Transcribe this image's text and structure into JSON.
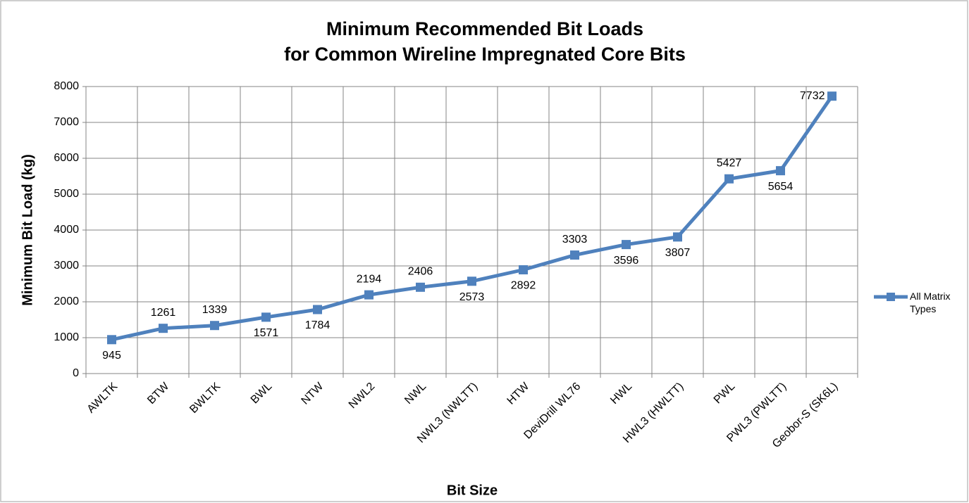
{
  "chart_data": {
    "type": "line",
    "title": [
      "Minimum Recommended Bit Loads",
      "for Common Wireline Impregnated Core Bits"
    ],
    "x_label": "Bit Size",
    "y_label": "Minimum Bit Load (kg)",
    "categories": [
      "AWLTK",
      "BTW",
      "BWLTK",
      "BWL",
      "NTW",
      "NWL2",
      "NWL",
      "NWL3 (NWLTT)",
      "HTW",
      "DeviDrill WL76",
      "HWL",
      "HWL3 (HWLTT)",
      "PWL",
      "PWL3 (PWLTT)",
      "Geobor-S (SK6L)"
    ],
    "series": [
      {
        "name": "All Matrix Types",
        "color": "#4f81bd",
        "values": [
          945,
          1261,
          1339,
          1571,
          1784,
          2194,
          2406,
          2573,
          2892,
          3303,
          3596,
          3807,
          5427,
          5654,
          7732
        ]
      }
    ],
    "ylim": [
      0,
      8000
    ],
    "yticks": [
      0,
      1000,
      2000,
      3000,
      4000,
      5000,
      6000,
      7000,
      8000
    ],
    "grid": true,
    "legend": "right"
  }
}
